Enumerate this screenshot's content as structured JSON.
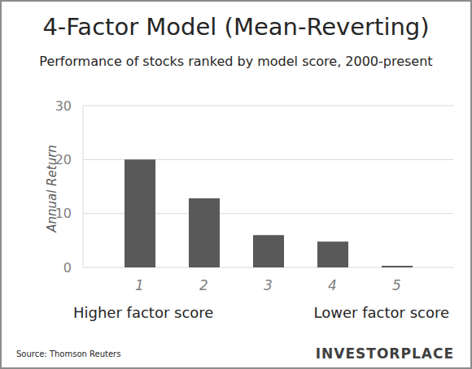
{
  "chart_data": {
    "type": "bar",
    "title": "4-Factor Model (Mean-Reverting)",
    "subtitle": "Performance of stocks ranked by model score, 2000-present",
    "y_label": "Annual Return",
    "categories": [
      "1",
      "2",
      "3",
      "4",
      "5"
    ],
    "values": [
      20,
      12.8,
      6,
      4.8,
      0.3
    ],
    "color": "#595959",
    "ylim": [
      0,
      30
    ],
    "yticks": [
      0,
      10,
      20,
      30
    ],
    "grid": true,
    "annotations": [
      "Higher factor score",
      "Lower factor score"
    ],
    "source": "Source: Thomson Reuters",
    "brand": "INVESTORPLACE"
  }
}
